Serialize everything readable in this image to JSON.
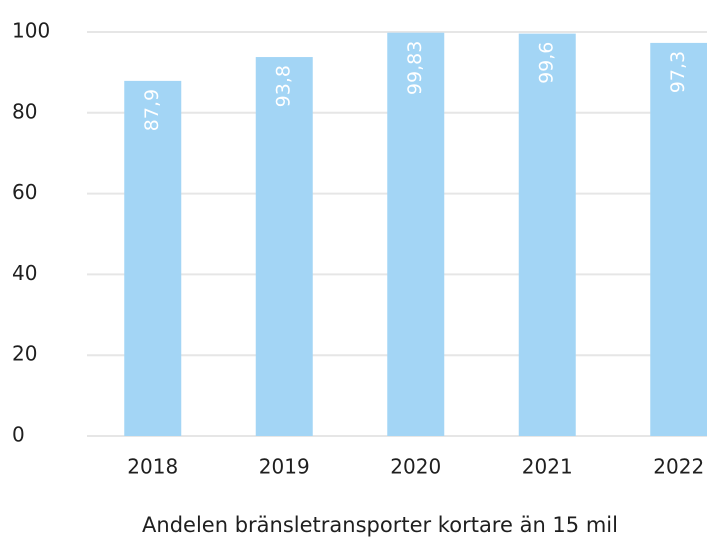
{
  "chart_data": {
    "type": "bar",
    "xlabel": "Andelen bränsletransporter kortare än 15 mil",
    "categories": [
      "2018",
      "2019",
      "2020",
      "2021",
      "2022"
    ],
    "values": [
      87.9,
      93.8,
      99.83,
      99.6,
      97.3
    ],
    "value_labels": [
      "87,9",
      "93,8",
      "99,83",
      "99,6",
      "97,3"
    ],
    "color": "#a3d5f5",
    "ylim": [
      0,
      100
    ],
    "yticks": [
      0,
      20,
      40,
      60,
      80,
      100
    ],
    "grid": true
  }
}
